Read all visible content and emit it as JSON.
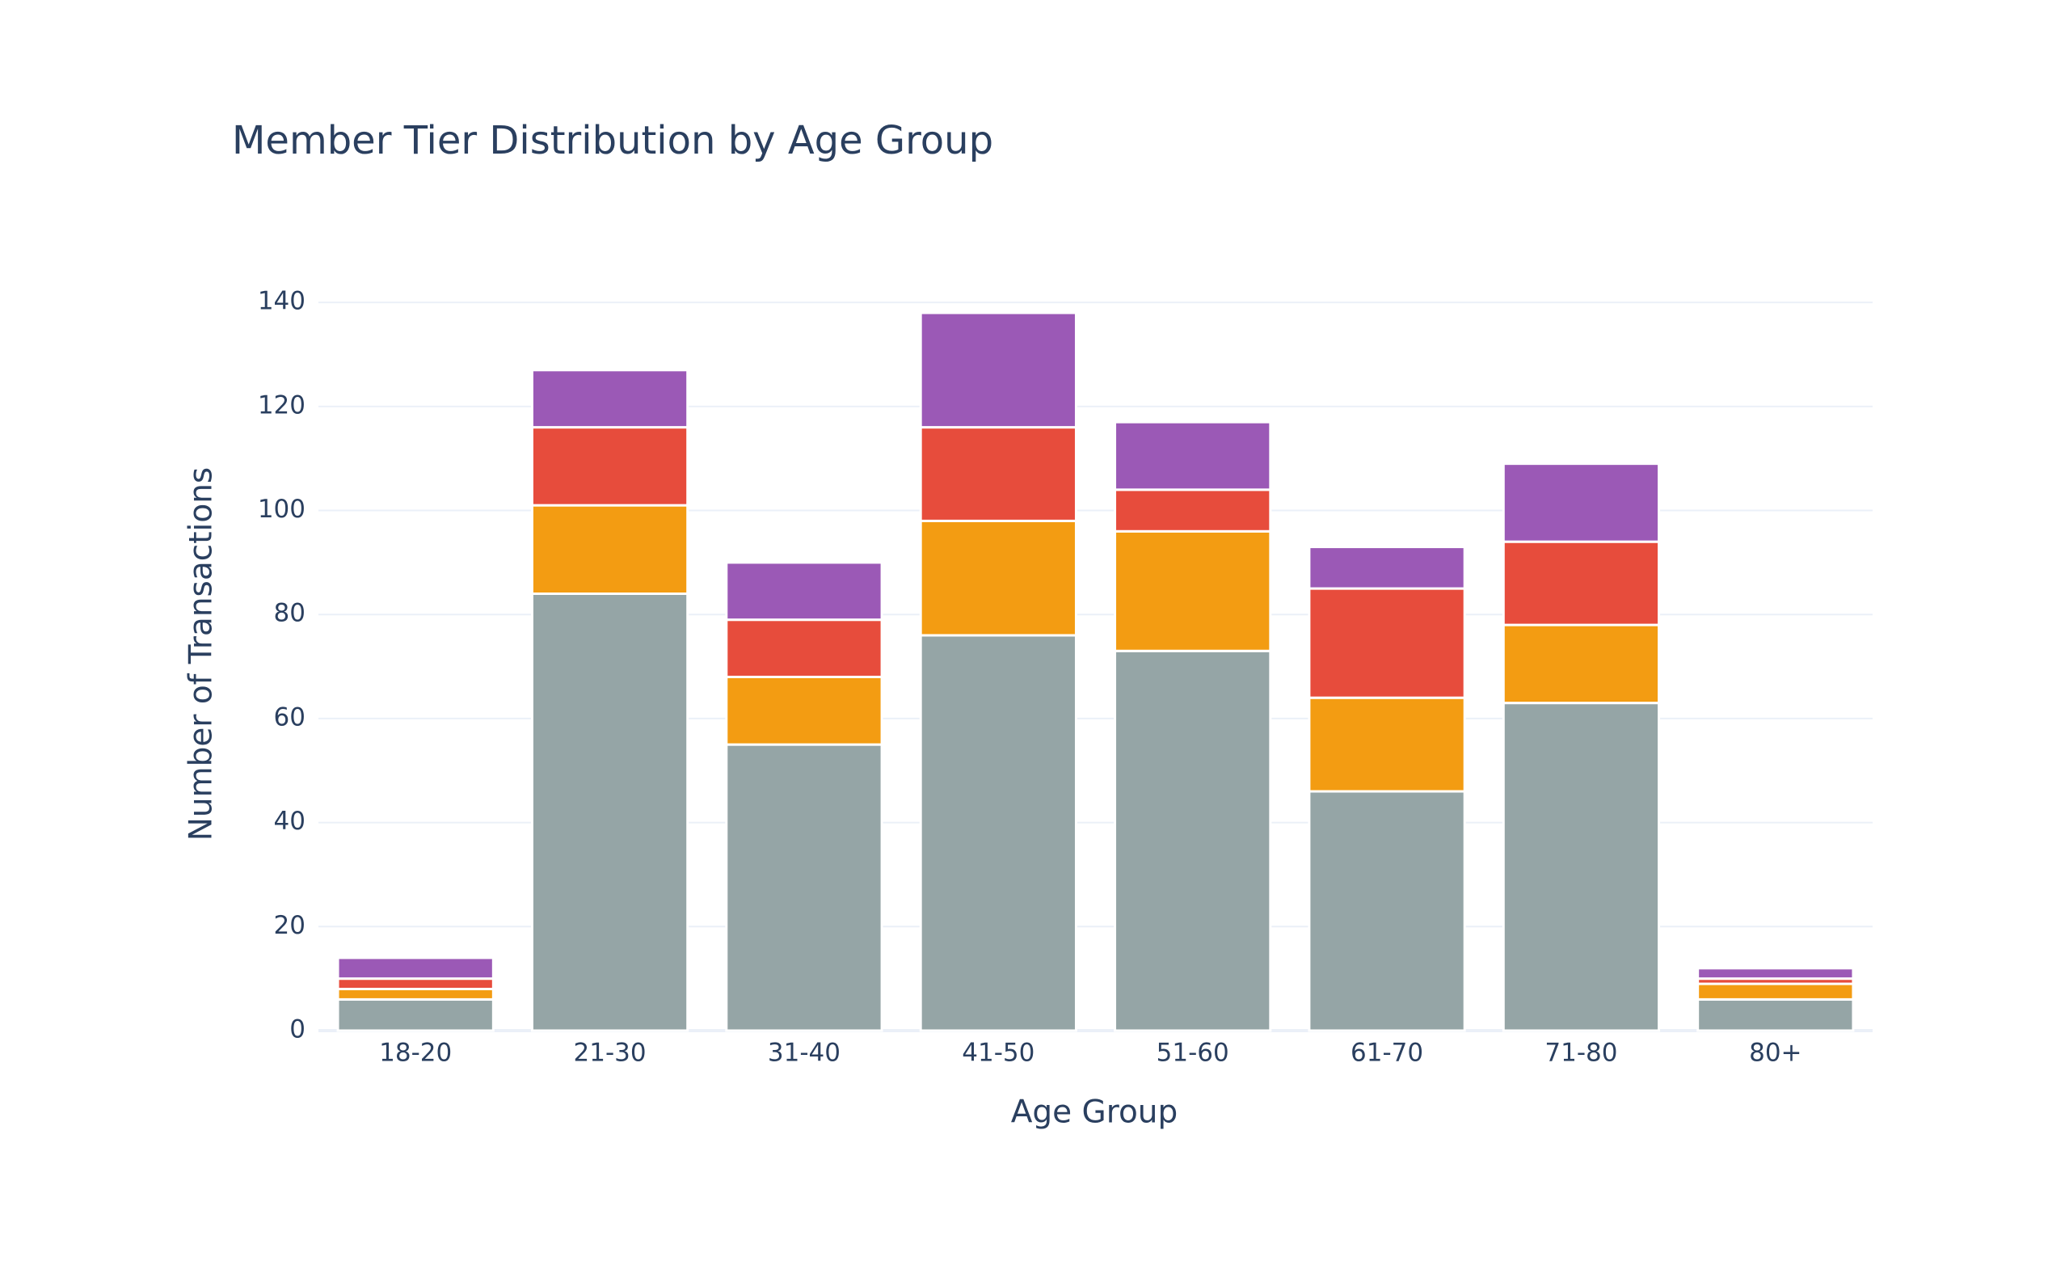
{
  "chart_data": {
    "type": "stacked_bar",
    "title": "Member Tier Distribution by Age Group",
    "x_label": "Age Group",
    "y_label": "Number of Transactions",
    "categories": [
      "18-20",
      "21-30",
      "31-40",
      "41-50",
      "51-60",
      "61-70",
      "71-80",
      "80+"
    ],
    "series": [
      {
        "color": "#95a5a6",
        "values": [
          6,
          84,
          55,
          76,
          73,
          46,
          63,
          6
        ]
      },
      {
        "color": "#f39c12",
        "values": [
          2,
          17,
          13,
          22,
          23,
          18,
          15,
          3
        ]
      },
      {
        "color": "#e74c3c",
        "values": [
          2,
          15,
          11,
          18,
          8,
          21,
          16,
          1
        ]
      },
      {
        "color": "#9b59b6",
        "values": [
          4,
          11,
          11,
          22,
          13,
          8,
          15,
          2
        ]
      }
    ],
    "ylim": [
      0,
      145
    ],
    "yticks": [
      0,
      20,
      40,
      60,
      80,
      100,
      120,
      140
    ],
    "grid": true
  }
}
